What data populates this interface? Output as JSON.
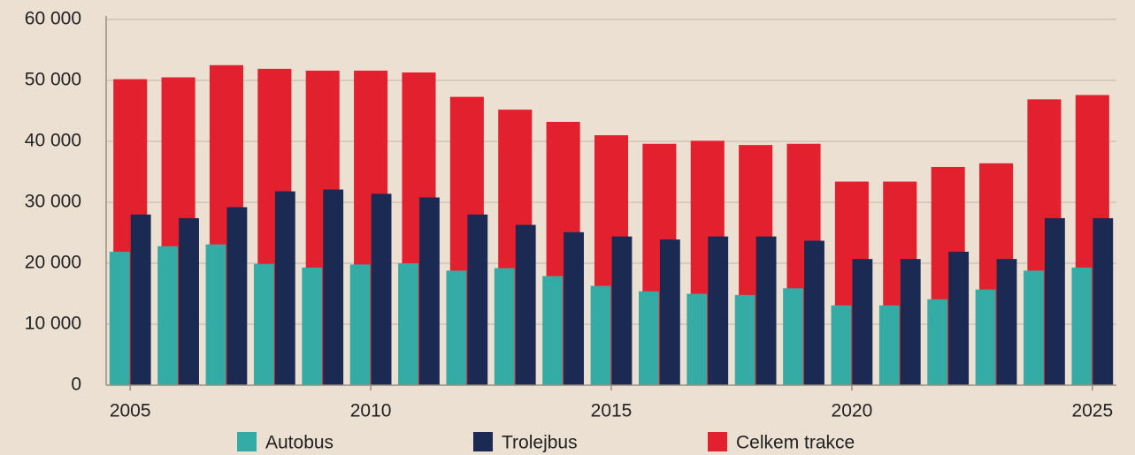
{
  "chart_data": {
    "type": "bar",
    "x": [
      2005,
      2006,
      2007,
      2008,
      2009,
      2010,
      2011,
      2012,
      2013,
      2014,
      2015,
      2016,
      2017,
      2018,
      2019,
      2020,
      2021,
      2022,
      2023,
      2024,
      2025
    ],
    "series": [
      {
        "name": "Celkem trakce",
        "color": "#e3202e",
        "values": [
          50200,
          50500,
          52500,
          51900,
          51600,
          51600,
          51300,
          47300,
          45200,
          43200,
          41000,
          39600,
          40100,
          39400,
          39600,
          33400,
          33400,
          35800,
          36400,
          46900,
          47600
        ]
      },
      {
        "name": "Autobus",
        "color": "#35aba6",
        "values": [
          21900,
          22800,
          23100,
          19900,
          19300,
          19800,
          20000,
          18800,
          19200,
          17900,
          16300,
          15400,
          15000,
          14800,
          15900,
          13100,
          13100,
          14100,
          15700,
          18800,
          19300
        ]
      },
      {
        "name": "Trolejbus",
        "color": "#1b2a52",
        "values": [
          28000,
          27400,
          29200,
          31800,
          32100,
          31400,
          30800,
          28000,
          26300,
          25100,
          24400,
          23900,
          24400,
          24400,
          23700,
          20700,
          20700,
          21900,
          20700,
          27400,
          27400
        ]
      }
    ],
    "xlim": [
      2004.5,
      2025.5
    ],
    "xticks": [
      2005,
      2010,
      2015,
      2020,
      2025
    ],
    "ylim": [
      0,
      60000
    ],
    "yticks": [
      0,
      {
        "value": 10000,
        "label": "10 000"
      },
      {
        "value": 20000,
        "label": "20 000"
      },
      {
        "value": 30000,
        "label": "30 000"
      },
      {
        "value": 40000,
        "label": "40 000"
      },
      {
        "value": 50000,
        "label": "50 000"
      },
      {
        "value": 60000,
        "label": "60 000"
      }
    ],
    "grid": true
  }
}
